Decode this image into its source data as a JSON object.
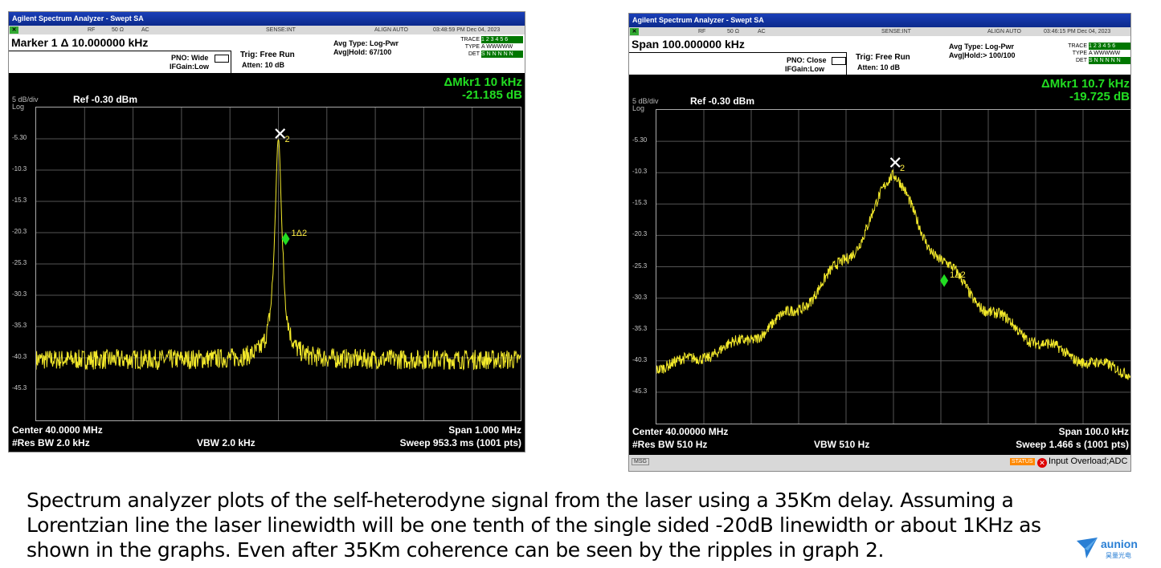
{
  "analyzers": [
    {
      "title": "Agilent Spectrum Analyzer - Swept SA",
      "status": {
        "rf": "RF",
        "imp": "50 Ω",
        "ac": "AC",
        "sense": "SENSE:INT",
        "align": "ALIGN AUTO",
        "time": "03:48:59 PM Dec 04, 2023"
      },
      "header": "Marker 1 Δ 10.000000 kHz",
      "pno": "PNO: Wide",
      "ifgain": "IFGain:Low",
      "trig": "Trig: Free Run",
      "atten": "Atten: 10 dB",
      "avg_type": "Avg Type: Log-Pwr",
      "avg_hold": "Avg|Hold: 67/100",
      "trace_label": "TRACE",
      "trace_nums": "1 2 3 4 5 6",
      "type_label": "TYPE",
      "type_val": "A WWWWW",
      "det_label": "DET",
      "det_val": "S N N N N N",
      "marker_line1": "ΔMkr1 10 kHz",
      "marker_line2": "-21.185 dB",
      "scale": "5 dB/div",
      "log": "Log",
      "ref": "Ref -0.30 dBm",
      "yticks": [
        "-5.30",
        "-10.3",
        "-15.3",
        "-20.3",
        "-25.3",
        "-30.3",
        "-35.3",
        "-40.3",
        "-45.3"
      ],
      "marker_ref_label": "2",
      "marker_delta_label": "1Δ2",
      "center": "Center 40.0000 MHz",
      "span": "Span 1.000 MHz",
      "rbw": "#Res BW 2.0 kHz",
      "vbw": "VBW 2.0 kHz",
      "sweep": "Sweep  953.3 ms (1001 pts)"
    },
    {
      "title": "Agilent Spectrum Analyzer - Swept SA",
      "status": {
        "rf": "RF",
        "imp": "50 Ω",
        "ac": "AC",
        "sense": "SENSE:INT",
        "align": "ALIGN AUTO",
        "time": "03:46:15 PM Dec 04, 2023"
      },
      "header": "Span 100.000000 kHz",
      "pno": "PNO: Close",
      "ifgain": "IFGain:Low",
      "trig": "Trig: Free Run",
      "atten": "Atten: 10 dB",
      "avg_type": "Avg Type: Log-Pwr",
      "avg_hold": "Avg|Hold:> 100/100",
      "trace_label": "TRACE",
      "trace_nums": "1 2 3 4 5 6",
      "type_label": "TYPE",
      "type_val": "A WWWWW",
      "det_label": "DET",
      "det_val": "S N N N N N",
      "marker_line1": "ΔMkr1 10.7 kHz",
      "marker_line2": "-19.725 dB",
      "scale": "5 dB/div",
      "log": "Log",
      "ref": "Ref -0.30 dBm",
      "yticks": [
        "-5.30",
        "-10.3",
        "-15.3",
        "-20.3",
        "-25.3",
        "-30.3",
        "-35.3",
        "-40.3",
        "-45.3"
      ],
      "marker_ref_label": "2",
      "marker_delta_label": "1Δ2",
      "center": "Center 40.00000 MHz",
      "span": "Span 100.0 kHz",
      "rbw": "#Res BW 510 Hz",
      "vbw": "VBW 510 Hz",
      "sweep": "Sweep  1.466 s (1001 pts)",
      "msg": "MSG",
      "status_label": "STATUS",
      "status_text": "Input Overload;ADC"
    }
  ],
  "caption": [
    "Spectrum analyzer plots of the self-heterodyne signal from the laser using a 35Km delay. Assuming a",
    "Lorentzian line the laser linewidth will be one tenth of the single sided -20dB linewidth or about 1KHz as",
    "shown in the graphs. Even after 35Km coherence can be seen by the ripples in graph 2."
  ],
  "logo": {
    "name": "aunion",
    "sub": "昊量光电",
    "color": "#2a7fd4"
  }
}
